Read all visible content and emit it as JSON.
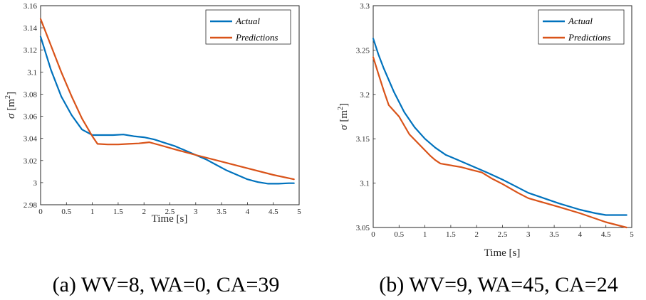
{
  "chart_data": [
    {
      "type": "line",
      "caption": "(a)  WV=8,  WA=0,  CA=39",
      "xlabel": "Time [s]",
      "ylabel_symbol": "σ",
      "ylabel_unit": "[m",
      "ylabel_exp": "2",
      "ylabel_close": "]",
      "xlim": [
        0,
        5
      ],
      "ylim": [
        2.98,
        3.16
      ],
      "xticks": [
        "0",
        "0.5",
        "1",
        "1.5",
        "2",
        "2.5",
        "3",
        "3.5",
        "4",
        "4.5",
        "5"
      ],
      "yticks": [
        "2.98",
        "3",
        "3.02",
        "3.04",
        "3.06",
        "3.08",
        "3.1",
        "3.12",
        "3.14",
        "3.16"
      ],
      "legend": [
        "Actual",
        "Predictions"
      ],
      "legend_position": "top-right",
      "series": [
        {
          "name": "Actual",
          "color": "#0072BD",
          "x": [
            0,
            0.2,
            0.4,
            0.6,
            0.8,
            1.0,
            1.2,
            1.4,
            1.6,
            1.8,
            2.0,
            2.2,
            2.4,
            2.6,
            2.8,
            3.0,
            3.2,
            3.4,
            3.6,
            3.8,
            4.0,
            4.2,
            4.4,
            4.6,
            4.8,
            4.9
          ],
          "y": [
            3.132,
            3.102,
            3.078,
            3.061,
            3.048,
            3.043,
            3.043,
            3.043,
            3.0435,
            3.042,
            3.041,
            3.039,
            3.036,
            3.033,
            3.029,
            3.025,
            3.021,
            3.016,
            3.011,
            3.007,
            3.003,
            3.0005,
            2.999,
            2.999,
            2.9995,
            2.9995
          ]
        },
        {
          "name": "Predictions",
          "color": "#D95319",
          "x": [
            0,
            0.2,
            0.4,
            0.6,
            0.8,
            1.0,
            1.1,
            1.3,
            1.5,
            1.7,
            1.9,
            2.1,
            2.3,
            2.6,
            3.0,
            3.5,
            4.0,
            4.5,
            4.9
          ],
          "y": [
            3.148,
            3.124,
            3.1,
            3.078,
            3.058,
            3.042,
            3.035,
            3.0345,
            3.0345,
            3.035,
            3.0355,
            3.0365,
            3.034,
            3.03,
            3.025,
            3.019,
            3.013,
            3.007,
            3.003
          ]
        }
      ]
    },
    {
      "type": "line",
      "caption": "(b)  WV=9,  WA=45,  CA=24",
      "xlabel": "Time [s]",
      "ylabel_symbol": "σ",
      "ylabel_unit": "[m",
      "ylabel_exp": "2",
      "ylabel_close": "]",
      "xlim": [
        0,
        5
      ],
      "ylim": [
        3.05,
        3.3
      ],
      "xticks": [
        "0",
        "0.5",
        "1",
        "1.5",
        "2",
        "2.5",
        "3",
        "3.5",
        "4",
        "4.5",
        "5"
      ],
      "yticks": [
        "3.05",
        "3.1",
        "3.15",
        "3.2",
        "3.25",
        "3.3"
      ],
      "legend": [
        "Actual",
        "Predictions"
      ],
      "legend_position": "top-right",
      "series": [
        {
          "name": "Actual",
          "color": "#0072BD",
          "x": [
            0,
            0.1,
            0.2,
            0.4,
            0.6,
            0.8,
            1.0,
            1.2,
            1.4,
            1.6,
            1.8,
            2.0,
            2.2,
            2.5,
            2.8,
            3.0,
            3.3,
            3.6,
            4.0,
            4.3,
            4.5,
            4.7,
            4.9
          ],
          "y": [
            3.263,
            3.245,
            3.23,
            3.203,
            3.18,
            3.163,
            3.15,
            3.14,
            3.132,
            3.127,
            3.122,
            3.117,
            3.112,
            3.104,
            3.095,
            3.089,
            3.083,
            3.077,
            3.07,
            3.066,
            3.064,
            3.064,
            3.064
          ]
        },
        {
          "name": "Predictions",
          "color": "#D95319",
          "x": [
            0,
            0.1,
            0.2,
            0.3,
            0.5,
            0.7,
            0.9,
            1.0,
            1.1,
            1.2,
            1.3,
            1.5,
            1.7,
            1.9,
            2.1,
            2.3,
            2.5,
            2.8,
            3.0,
            3.3,
            3.6,
            4.0,
            4.3,
            4.5,
            4.9
          ],
          "y": [
            3.242,
            3.223,
            3.205,
            3.188,
            3.175,
            3.155,
            3.143,
            3.137,
            3.131,
            3.126,
            3.122,
            3.12,
            3.118,
            3.115,
            3.112,
            3.105,
            3.099,
            3.089,
            3.083,
            3.078,
            3.073,
            3.066,
            3.06,
            3.056,
            3.05
          ]
        }
      ]
    }
  ]
}
